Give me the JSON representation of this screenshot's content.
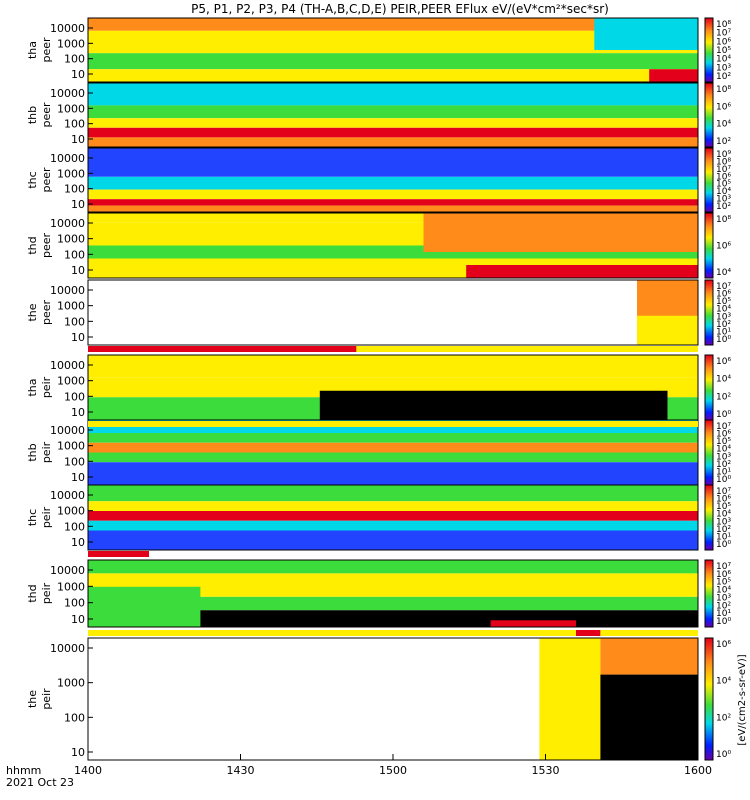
{
  "chart_data": {
    "type": "heatmap",
    "title": "P5, P1, P2, P3, P4 (TH-A,B,C,D,E) PEIR,PEER EFlux eV/(eV*cm²*sec*sr)",
    "x_axis": {
      "label": "hhmm",
      "date": "2021 Oct 23",
      "ticks": [
        "1400",
        "1430",
        "1500",
        "1530",
        "1600"
      ],
      "range": [
        "1400",
        "1600"
      ]
    },
    "colorbar_label": "[eV/(cm2-s-sr-eV)]",
    "y_ticks_energy": [
      "10000",
      "1000",
      "100",
      "10"
    ],
    "panels": [
      {
        "probe": "tha",
        "species": "peer",
        "ylabel_1": "tha",
        "ylabel_2": "peer",
        "cbar_ticks": [
          "10⁸",
          "10⁷",
          "10⁶",
          "10⁵",
          "10⁴",
          "10³",
          "10²"
        ]
      },
      {
        "probe": "thb",
        "species": "peer",
        "ylabel_1": "thb",
        "ylabel_2": "peer",
        "cbar_ticks": [
          "10⁸",
          "10⁶",
          "10⁴",
          "10²"
        ]
      },
      {
        "probe": "thc",
        "species": "peer",
        "ylabel_1": "thc",
        "ylabel_2": "peer",
        "cbar_ticks": [
          "10⁹",
          "10⁸",
          "10⁷",
          "10⁶",
          "10⁵",
          "10⁴",
          "10³",
          "10²"
        ]
      },
      {
        "probe": "thd",
        "species": "peer",
        "ylabel_1": "thd",
        "ylabel_2": "peer",
        "cbar_ticks": [
          "10⁸",
          "10⁶",
          "10⁴"
        ]
      },
      {
        "probe": "the",
        "species": "peer",
        "ylabel_1": "the",
        "ylabel_2": "peer",
        "cbar_ticks": [
          "10⁷",
          "10⁶",
          "10⁵",
          "10⁴",
          "10³",
          "10²",
          "10¹",
          "10⁰"
        ]
      },
      {
        "probe": "tha",
        "species": "peir",
        "ylabel_1": "tha",
        "ylabel_2": "peir",
        "cbar_ticks": [
          "10⁶",
          "10⁴",
          "10²",
          "10⁰"
        ]
      },
      {
        "probe": "thb",
        "species": "peir",
        "ylabel_1": "thb",
        "ylabel_2": "peir",
        "cbar_ticks": [
          "10⁷",
          "10⁶",
          "10⁵",
          "10⁴",
          "10³",
          "10²",
          "10¹",
          "10⁰"
        ]
      },
      {
        "probe": "thc",
        "species": "peir",
        "ylabel_1": "thc",
        "ylabel_2": "peir",
        "cbar_ticks": [
          "10⁷",
          "10⁶",
          "10⁵",
          "10⁴",
          "10³",
          "10²",
          "10¹",
          "10⁰"
        ]
      },
      {
        "probe": "thd",
        "species": "peir",
        "ylabel_1": "thd",
        "ylabel_2": "peir",
        "cbar_ticks": [
          "10⁷",
          "10⁶",
          "10⁵",
          "10⁴",
          "10³",
          "10²",
          "10¹",
          "10⁰"
        ]
      },
      {
        "probe": "the",
        "species": "peir",
        "ylabel_1": "the",
        "ylabel_2": "peir",
        "cbar_ticks": [
          "10⁶",
          "10⁴",
          "10²",
          "10⁰"
        ]
      }
    ],
    "colors": {
      "red": "#e3001b",
      "orange": "#ff8c1a",
      "yellow": "#ffee00",
      "green": "#3ddc3d",
      "cyan": "#00d8e8",
      "blue": "#2244ff",
      "black": "#000000",
      "gap": "#ffffff"
    }
  }
}
